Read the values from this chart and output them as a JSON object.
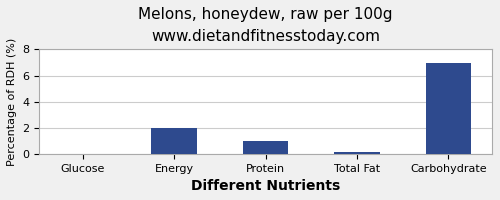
{
  "title": "Melons, honeydew, raw per 100g",
  "subtitle": "www.dietandfitnesstoday.com",
  "xlabel": "Different Nutrients",
  "ylabel": "Percentage of RDH (%)",
  "categories": [
    "Glucose",
    "Energy",
    "Protein",
    "Total Fat",
    "Carbohydrate"
  ],
  "values": [
    0.0,
    2.0,
    1.0,
    0.1,
    7.0
  ],
  "bar_color": "#2e4a8e",
  "ylim": [
    0,
    8
  ],
  "yticks": [
    0,
    2,
    4,
    6,
    8
  ],
  "background_color": "#f0f0f0",
  "plot_bg_color": "#ffffff",
  "title_fontsize": 11,
  "subtitle_fontsize": 9,
  "xlabel_fontsize": 10,
  "ylabel_fontsize": 8,
  "tick_fontsize": 8,
  "grid_color": "#cccccc"
}
